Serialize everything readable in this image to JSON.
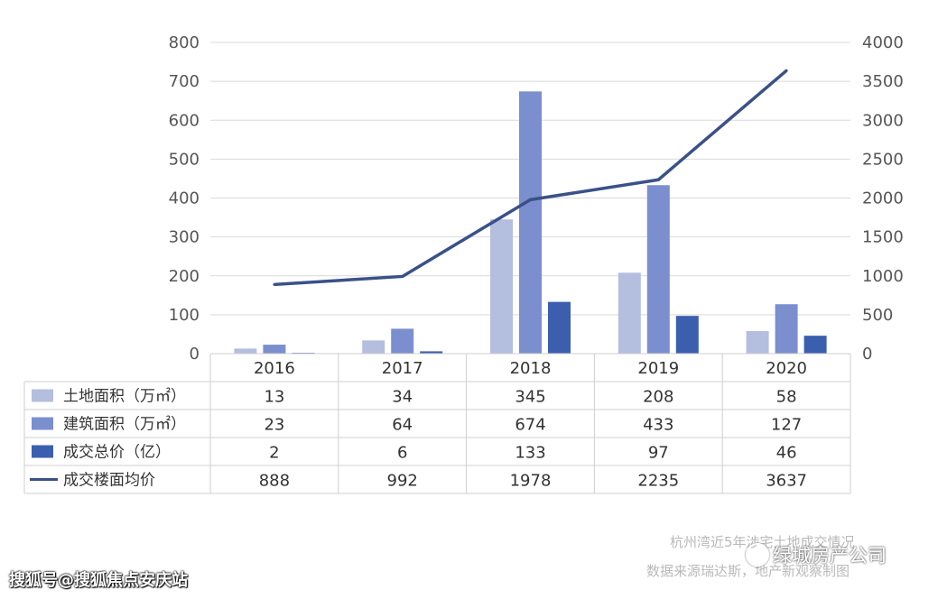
{
  "chart_data": {
    "type": "bar",
    "categories": [
      "2016",
      "2017",
      "2018",
      "2019",
      "2020"
    ],
    "series": [
      {
        "name": "土地面积（万㎡）",
        "kind": "bar",
        "axis": "left",
        "color": "#b4bedf",
        "values": [
          13,
          34,
          345,
          208,
          58
        ]
      },
      {
        "name": "建筑面积（万㎡）",
        "kind": "bar",
        "axis": "left",
        "color": "#7b8fcf",
        "values": [
          23,
          64,
          674,
          433,
          127
        ]
      },
      {
        "name": "成交总价（亿）",
        "kind": "bar",
        "axis": "left",
        "color": "#3b5fae",
        "values": [
          2,
          6,
          133,
          97,
          46
        ]
      },
      {
        "name": "成交楼面均价",
        "kind": "line",
        "axis": "right",
        "color": "#3a5188",
        "values": [
          888,
          992,
          1978,
          2235,
          3637
        ]
      }
    ],
    "y_left": {
      "lim": [
        0,
        800
      ],
      "ticks": [
        "0",
        "100",
        "200",
        "300",
        "400",
        "500",
        "600",
        "700",
        "800"
      ]
    },
    "y_right": {
      "lim": [
        0,
        4000
      ],
      "ticks": [
        "0",
        "500",
        "1000",
        "1500",
        "2000",
        "2500",
        "3000",
        "3500",
        "4000"
      ]
    },
    "grid": true,
    "data_table": true
  },
  "footer": {
    "line1": "杭州湾近5年涉宅土地成交情况",
    "line2": "数据来源瑞达斯，地产新观察制图"
  },
  "watermarks": {
    "left": "搜狐号@搜狐焦点安庆站",
    "right": "绿城房产公司"
  }
}
